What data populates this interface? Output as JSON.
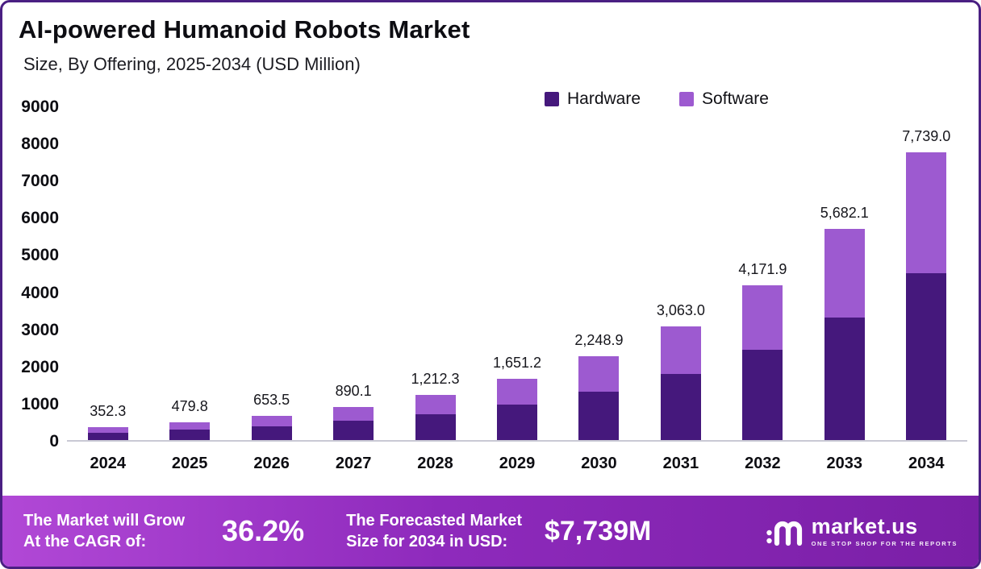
{
  "header": {
    "title": "AI-powered Humanoid Robots Market",
    "subtitle": "Size, By Offering, 2025-2034 (USD Million)"
  },
  "legend": [
    {
      "label": "Hardware",
      "color": "#45187c"
    },
    {
      "label": "Software",
      "color": "#9d5ad0"
    }
  ],
  "chart_data": {
    "type": "bar",
    "stacked": true,
    "title": "AI-powered Humanoid Robots Market",
    "subtitle": "Size, By Offering, 2025-2034 (USD Million)",
    "unit": "USD Million",
    "categories": [
      "2024",
      "2025",
      "2026",
      "2027",
      "2028",
      "2029",
      "2030",
      "2031",
      "2032",
      "2033",
      "2034"
    ],
    "totals": [
      352.3,
      479.8,
      653.5,
      890.1,
      1212.3,
      1651.2,
      2248.9,
      3063.0,
      4171.9,
      5682.1,
      7739.0
    ],
    "total_labels": [
      "352.3",
      "479.8",
      "653.5",
      "890.1",
      "1,212.3",
      "1,651.2",
      "2,248.9",
      "3,063.0",
      "4,171.9",
      "5,682.1",
      "7,739.0"
    ],
    "series": [
      {
        "name": "Hardware",
        "color": "#45187c",
        "values": [
          204.3,
          278.3,
          379.0,
          516.3,
          703.1,
          957.7,
          1304.4,
          1776.5,
          2419.7,
          3295.6,
          4488.6
        ]
      },
      {
        "name": "Software",
        "color": "#9d5ad0",
        "values": [
          148.0,
          201.5,
          274.5,
          373.8,
          509.2,
          693.5,
          944.5,
          1286.5,
          1752.2,
          2386.5,
          3250.4
        ]
      }
    ],
    "ylim": [
      0,
      9000
    ],
    "y_ticks": [
      9000,
      8000,
      7000,
      6000,
      5000,
      4000,
      3000,
      2000,
      1000,
      0
    ],
    "legend_position": "top",
    "grid": false
  },
  "banner": {
    "cagr_label_line1": "The Market will Grow",
    "cagr_label_line2": "At the CAGR of:",
    "cagr_value": "36.2%",
    "forecast_label_line1": "The Forecasted Market",
    "forecast_label_line2": "Size for 2034 in USD:",
    "forecast_value": "$7,739M",
    "brand": "market.us",
    "brand_tagline": "ONE STOP SHOP FOR THE REPORTS"
  }
}
